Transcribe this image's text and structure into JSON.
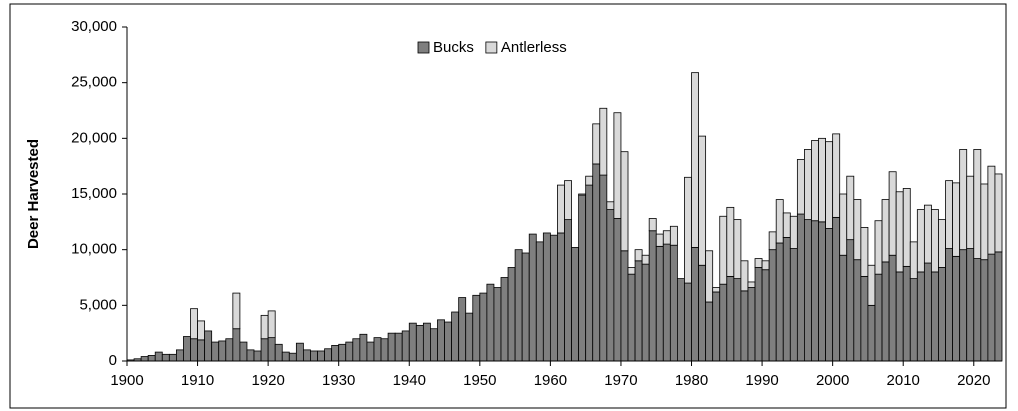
{
  "chart_data": {
    "type": "stacked_bar",
    "y_label": "Deer Harvested",
    "legend": "top",
    "x": [
      1900,
      1901,
      1902,
      1903,
      1904,
      1905,
      1906,
      1907,
      1908,
      1909,
      1910,
      1911,
      1912,
      1913,
      1914,
      1915,
      1916,
      1917,
      1918,
      1919,
      1920,
      1921,
      1922,
      1923,
      1924,
      1925,
      1926,
      1927,
      1928,
      1929,
      1930,
      1931,
      1932,
      1933,
      1934,
      1935,
      1936,
      1937,
      1938,
      1939,
      1940,
      1941,
      1942,
      1943,
      1944,
      1945,
      1946,
      1947,
      1948,
      1949,
      1950,
      1951,
      1952,
      1953,
      1954,
      1955,
      1956,
      1957,
      1958,
      1959,
      1960,
      1961,
      1962,
      1963,
      1964,
      1965,
      1966,
      1967,
      1968,
      1969,
      1970,
      1971,
      1972,
      1973,
      1974,
      1975,
      1976,
      1977,
      1978,
      1979,
      1980,
      1981,
      1982,
      1983,
      1984,
      1985,
      1986,
      1987,
      1988,
      1989,
      1990,
      1991,
      1992,
      1993,
      1994,
      1995,
      1996,
      1997,
      1998,
      1999,
      2000,
      2001,
      2002,
      2003,
      2004,
      2005,
      2006,
      2007,
      2008,
      2009,
      2010,
      2011,
      2012,
      2013,
      2014,
      2015,
      2016,
      2017,
      2018,
      2019,
      2020,
      2021,
      2022,
      2023
    ],
    "series": [
      {
        "name": "Bucks",
        "color": "#7f7f7f",
        "values": [
          100,
          200,
          400,
          500,
          800,
          600,
          600,
          1000,
          2200,
          2000,
          1900,
          2700,
          1700,
          1800,
          2000,
          2900,
          1700,
          1000,
          900,
          2000,
          2100,
          1500,
          800,
          700,
          1600,
          1000,
          900,
          900,
          1100,
          1400,
          1500,
          1700,
          2000,
          2400,
          1700,
          2100,
          2000,
          2500,
          2500,
          2700,
          3400,
          3200,
          3400,
          2900,
          3700,
          3500,
          4400,
          5700,
          4300,
          5900,
          6100,
          6900,
          6600,
          7500,
          8400,
          10000,
          9700,
          11400,
          10700,
          11500,
          11300,
          11500,
          12700,
          10200,
          14900,
          15800,
          17700,
          16700,
          13600,
          12800,
          9900,
          7800,
          9000,
          8700,
          11700,
          10300,
          10500,
          10400,
          7400,
          7000,
          10200,
          8600,
          5300,
          6200,
          6900,
          7600,
          7400,
          6300,
          6600,
          8400,
          8200,
          10000,
          10600,
          11100,
          10100,
          13200,
          12700,
          12600,
          12500,
          11900,
          12900,
          9500,
          10900,
          9100,
          7600,
          5000,
          7800,
          8900,
          9500,
          8000,
          8500,
          7400,
          8000,
          8800,
          8000,
          8400,
          10100,
          9400,
          10000,
          10100,
          9200,
          9100,
          9600,
          9800
        ]
      },
      {
        "name": "Antlerless",
        "color": "#d9d9d9",
        "values": [
          0,
          0,
          0,
          0,
          0,
          0,
          0,
          0,
          0,
          2700,
          1700,
          0,
          0,
          0,
          0,
          3200,
          0,
          0,
          0,
          2100,
          2400,
          0,
          0,
          0,
          0,
          0,
          0,
          0,
          0,
          0,
          0,
          0,
          0,
          0,
          0,
          0,
          0,
          0,
          0,
          0,
          0,
          0,
          0,
          0,
          0,
          0,
          0,
          0,
          0,
          0,
          0,
          0,
          0,
          0,
          0,
          0,
          0,
          0,
          0,
          0,
          0,
          4300,
          3500,
          0,
          100,
          800,
          3600,
          6000,
          700,
          9500,
          8900,
          600,
          1000,
          800,
          1100,
          1100,
          1200,
          1700,
          0,
          9500,
          15700,
          11600,
          4600,
          400,
          6100,
          6200,
          5300,
          2700,
          500,
          800,
          800,
          1600,
          3900,
          2200,
          2900,
          4900,
          6300,
          7200,
          7500,
          7800,
          7500,
          5500,
          5700,
          5400,
          4400,
          3600,
          4800,
          5600,
          7500,
          7200,
          7000,
          3300,
          5600,
          5200,
          5600,
          4300,
          6100,
          6600,
          9000,
          6500,
          9800,
          6800,
          7900,
          7000
        ]
      }
    ],
    "xlim": [
      1900,
      2024
    ],
    "xticks": [
      1900,
      1910,
      1920,
      1930,
      1940,
      1950,
      1960,
      1970,
      1980,
      1990,
      2000,
      2010,
      2020
    ],
    "ylim": [
      0,
      30000
    ],
    "yticks": [
      0,
      {
        "value": 5000,
        "label": "5,000"
      },
      {
        "value": 10000,
        "label": "10,000"
      },
      {
        "value": 15000,
        "label": "15,000"
      },
      {
        "value": 20000,
        "label": "20,000"
      },
      {
        "value": 25000,
        "label": "25,000"
      },
      {
        "value": 30000,
        "label": "30,000"
      }
    ]
  }
}
